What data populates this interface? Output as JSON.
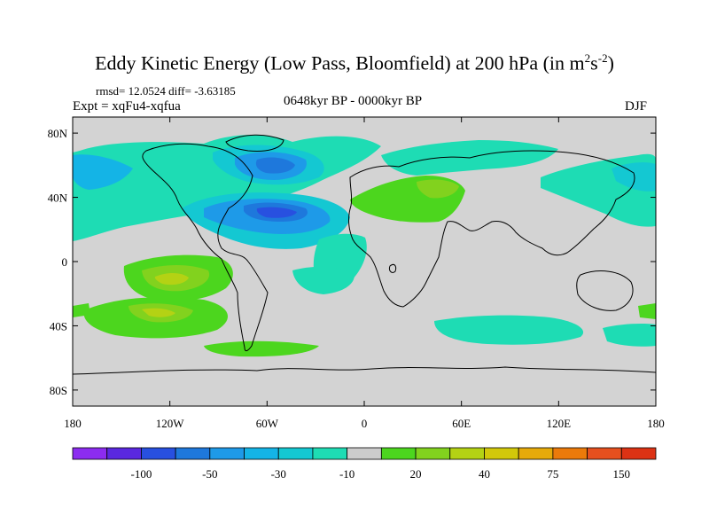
{
  "title": {
    "main": "Eddy Kinetic Energy (Low Pass, Bloomfield) at 200 hPa (in m",
    "sup1": "2",
    "mid": "s",
    "sup2": "-2",
    "end": ")"
  },
  "rmsd_label": "rmsd= 12.0524 diff= -3.63185",
  "expt_label": "Expt = xqFu4-xqfua",
  "period_label": "0648kyr BP - 0000kyr BP",
  "season_label": "DJF",
  "colors": {
    "background": "#ffffff",
    "missing": "#d3d3d3",
    "coast": "#000000"
  },
  "chart_data": {
    "type": "heatmap",
    "variable": "Eddy kinetic energy difference at 200 hPa",
    "units": "m^2 s^-2",
    "x_axis": {
      "range": [
        -180,
        180
      ],
      "ticks": [
        -180,
        -120,
        -60,
        0,
        60,
        120,
        180
      ],
      "tick_labels": [
        "180",
        "120W",
        "60W",
        "0",
        "60E",
        "120E",
        "180"
      ]
    },
    "y_axis": {
      "range": [
        -90,
        90
      ],
      "ticks": [
        80,
        40,
        0,
        -40,
        -80
      ],
      "tick_labels": [
        "80N",
        "40N",
        "0",
        "40S",
        "80S"
      ]
    },
    "colorbar": {
      "levels": [
        -150,
        -100,
        -75,
        -50,
        -40,
        -30,
        -20,
        -10,
        10,
        20,
        30,
        40,
        50,
        75,
        100,
        150
      ],
      "labels": [
        "-100",
        "-50",
        "-30",
        "-10",
        "20",
        "40",
        "75",
        "150"
      ],
      "colors": [
        "#8c2cf0",
        "#5a28e0",
        "#2850e0",
        "#1e78dc",
        "#1e9ae8",
        "#14b4e6",
        "#14c8d2",
        "#1edcb4",
        "#cccccc",
        "#4cd61e",
        "#82d21e",
        "#b4d214",
        "#d2c80a",
        "#e6aa0a",
        "#eb7a0a",
        "#e6501e",
        "#dc3214"
      ]
    },
    "regions": [
      {
        "name": "north-atlantic-negative",
        "lon_center": -70,
        "lat_center": 32,
        "value": -35
      },
      {
        "name": "north-america-negative",
        "lon_center": -75,
        "lat_center": 62,
        "value": -30
      },
      {
        "name": "north-pacific-negative",
        "lon_center": -150,
        "lat_center": 50,
        "value": -20
      },
      {
        "name": "tropical-pacific-positive",
        "lon_center": -125,
        "lat_center": -15,
        "value": 30
      },
      {
        "name": "south-pacific-positive",
        "lon_center": -120,
        "lat_center": -32,
        "value": 30
      },
      {
        "name": "north-africa-positive",
        "lon_center": 45,
        "lat_center": 40,
        "value": 15
      },
      {
        "name": "south-indian-negative",
        "lon_center": 80,
        "lat_center": -42,
        "value": -15
      }
    ]
  }
}
